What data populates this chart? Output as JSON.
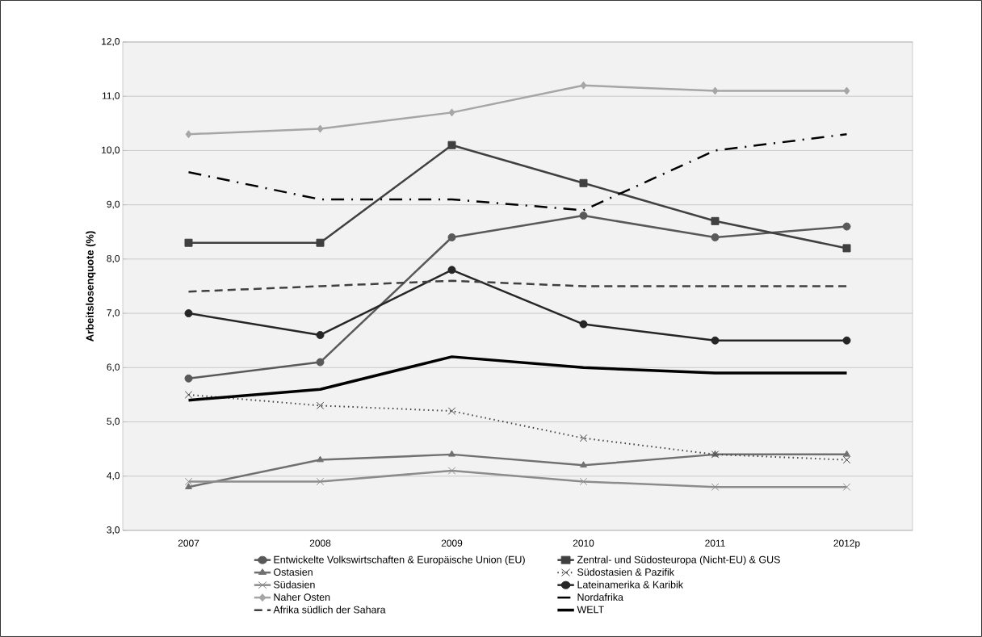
{
  "chart_data": {
    "type": "line",
    "ylabel": "Arbeitslosenquote (%)",
    "categories": [
      "2007",
      "2008",
      "2009",
      "2010",
      "2011",
      "2012p"
    ],
    "ylim": [
      3,
      12
    ],
    "yticks": [
      {
        "value": 3,
        "label": "3,0"
      },
      {
        "value": 4,
        "label": "4,0"
      },
      {
        "value": 5,
        "label": "5,0"
      },
      {
        "value": 6,
        "label": "6,0"
      },
      {
        "value": 7,
        "label": "7,0"
      },
      {
        "value": 8,
        "label": "8,0"
      },
      {
        "value": 9,
        "label": "9,0"
      },
      {
        "value": 10,
        "label": "10,0"
      },
      {
        "value": 11,
        "label": "11,0"
      },
      {
        "value": 12,
        "label": "12,0"
      }
    ],
    "grid": "y",
    "legend": "bottom",
    "series": [
      {
        "name": "Entwickelte Volkswirtschaften & Europäische Union (EU)",
        "color": "#595959",
        "marker": "circle",
        "line_style": "solid",
        "values": [
          5.8,
          6.1,
          8.4,
          8.8,
          8.4,
          8.6
        ]
      },
      {
        "name": "Zentral- und Südosteuropa (Nicht-EU) & GUS",
        "color": "#404040",
        "marker": "square",
        "line_style": "solid",
        "values": [
          8.3,
          8.3,
          10.1,
          9.4,
          8.7,
          8.2
        ]
      },
      {
        "name": "Ostasien",
        "color": "#707070",
        "marker": "triangle",
        "line_style": "solid",
        "values": [
          3.8,
          4.3,
          4.4,
          4.2,
          4.4,
          4.4
        ]
      },
      {
        "name": "Südostasien & Pazifik",
        "color": "#404040",
        "marker": "cross",
        "line_style": "dotted",
        "values": [
          5.5,
          5.3,
          5.2,
          4.7,
          4.4,
          4.3
        ]
      },
      {
        "name": "Südasien",
        "color": "#8c8c8c",
        "marker": "cross",
        "line_style": "solid",
        "values": [
          3.9,
          3.9,
          4.1,
          3.9,
          3.8,
          3.8
        ]
      },
      {
        "name": "Lateinamerika & Karibik",
        "color": "#262626",
        "marker": "circle",
        "line_style": "solid",
        "values": [
          7.0,
          6.6,
          7.8,
          6.8,
          6.5,
          6.5
        ]
      },
      {
        "name": "Naher Osten",
        "color": "#a6a6a6",
        "marker": "diamond",
        "line_style": "solid",
        "values": [
          10.3,
          10.4,
          10.7,
          11.2,
          11.1,
          11.1
        ]
      },
      {
        "name": "Nordafrika",
        "color": "#000000",
        "marker": "none",
        "line_style": "dashdot",
        "values": [
          9.6,
          9.1,
          9.1,
          8.9,
          10.0,
          10.3
        ]
      },
      {
        "name": "Afrika südlich der Sahara",
        "color": "#404040",
        "marker": "none",
        "line_style": "dashed",
        "values": [
          7.4,
          7.5,
          7.6,
          7.5,
          7.5,
          7.5
        ]
      },
      {
        "name": "WELT",
        "color": "#000000",
        "marker": "none",
        "line_style": "solid",
        "values": [
          5.4,
          5.6,
          6.2,
          6.0,
          5.9,
          5.9
        ]
      }
    ]
  }
}
